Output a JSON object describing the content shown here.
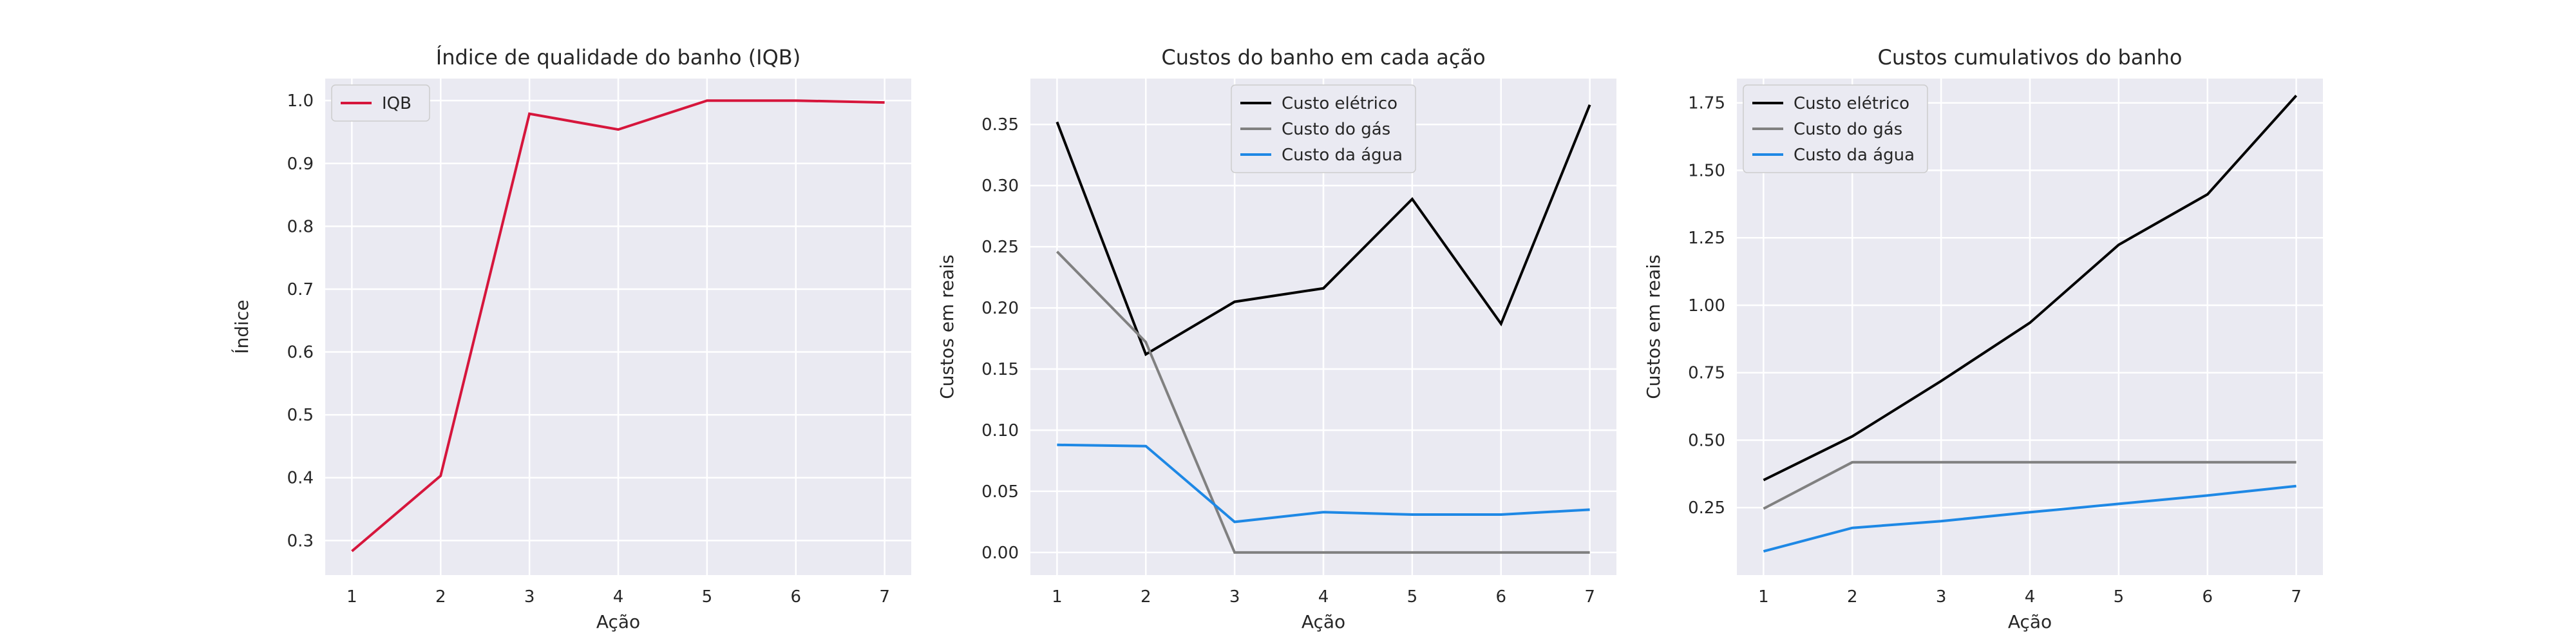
{
  "chart_data": [
    {
      "type": "line",
      "title": "Índice de qualidade do banho (IQB)",
      "xlabel": "Ação",
      "ylabel": "Índice",
      "x": [
        1,
        2,
        3,
        4,
        5,
        6,
        7
      ],
      "xlim": [
        0.7,
        7.3
      ],
      "ylim": [
        0.245,
        1.035
      ],
      "yticks": [
        0.3,
        0.4,
        0.5,
        0.6,
        0.7,
        0.8,
        0.9,
        1.0
      ],
      "ytick_labels": [
        "0.3",
        "0.4",
        "0.5",
        "0.6",
        "0.7",
        "0.8",
        "0.9",
        "1.0"
      ],
      "legend_position": "upper-left",
      "grid": true,
      "series": [
        {
          "name": "IQB",
          "color": "#d6163c",
          "values": [
            0.283,
            0.403,
            0.979,
            0.954,
            1.0,
            1.0,
            0.997
          ]
        }
      ]
    },
    {
      "type": "line",
      "title": "Custos do banho em cada ação",
      "xlabel": "Ação",
      "ylabel": "Custos em reais",
      "x": [
        1,
        2,
        3,
        4,
        5,
        6,
        7
      ],
      "xlim": [
        0.7,
        7.3
      ],
      "ylim": [
        -0.0185,
        0.3875
      ],
      "yticks": [
        0.0,
        0.05,
        0.1,
        0.15,
        0.2,
        0.25,
        0.3,
        0.35
      ],
      "ytick_labels": [
        "0.00",
        "0.05",
        "0.10",
        "0.15",
        "0.20",
        "0.25",
        "0.30",
        "0.35"
      ],
      "legend_position": "upper-center",
      "grid": true,
      "series": [
        {
          "name": "Custo elétrico",
          "color": "#000000",
          "values": [
            0.352,
            0.162,
            0.205,
            0.216,
            0.289,
            0.187,
            0.366
          ]
        },
        {
          "name": "Custo do gás",
          "color": "#808080",
          "values": [
            0.246,
            0.172,
            0.0,
            0.0,
            0.0,
            0.0,
            0.0
          ]
        },
        {
          "name": "Custo da água",
          "color": "#1e88e5",
          "values": [
            0.088,
            0.087,
            0.025,
            0.033,
            0.031,
            0.031,
            0.035
          ]
        }
      ]
    },
    {
      "type": "line",
      "title": "Custos cumulativos do banho",
      "xlabel": "Ação",
      "ylabel": "Custos em reais",
      "x": [
        1,
        2,
        3,
        4,
        5,
        6,
        7
      ],
      "xlim": [
        0.7,
        7.3
      ],
      "ylim": [
        0.0,
        1.84
      ],
      "yticks": [
        0.25,
        0.5,
        0.75,
        1.0,
        1.25,
        1.5,
        1.75
      ],
      "ytick_labels": [
        "0.25",
        "0.50",
        "0.75",
        "1.00",
        "1.25",
        "1.50",
        "1.75"
      ],
      "legend_position": "upper-left",
      "grid": true,
      "series": [
        {
          "name": "Custo elétrico",
          "color": "#000000",
          "values": [
            0.352,
            0.514,
            0.719,
            0.935,
            1.224,
            1.411,
            1.777
          ]
        },
        {
          "name": "Custo do gás",
          "color": "#808080",
          "values": [
            0.246,
            0.418,
            0.418,
            0.418,
            0.418,
            0.418,
            0.418
          ]
        },
        {
          "name": "Custo da água",
          "color": "#1e88e5",
          "values": [
            0.088,
            0.175,
            0.2,
            0.233,
            0.264,
            0.295,
            0.33
          ]
        }
      ]
    }
  ]
}
